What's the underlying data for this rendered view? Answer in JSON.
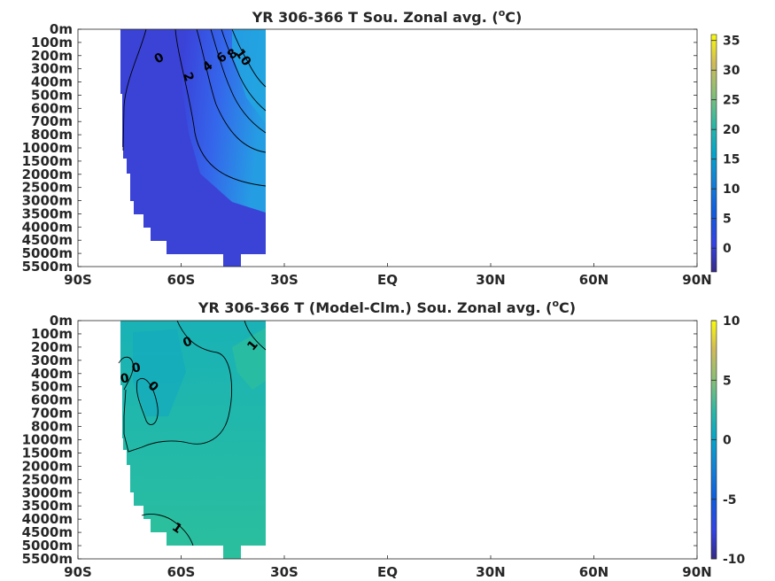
{
  "chart_data": [
    {
      "type": "heatmap",
      "title_main": "YR 306-366 T Sou. Zonal avg. (",
      "title_sup": "o",
      "title_end": "C)",
      "x_ticks": [
        "90S",
        "60S",
        "30S",
        "EQ",
        "30N",
        "60N",
        "90N"
      ],
      "y_ticks": [
        "0m",
        "100m",
        "200m",
        "300m",
        "400m",
        "500m",
        "600m",
        "700m",
        "800m",
        "1000m",
        "1500m",
        "2000m",
        "2500m",
        "3000m",
        "3500m",
        "4000m",
        "4500m",
        "5000m",
        "5500m"
      ],
      "colorbar_ticks": [
        35,
        30,
        25,
        20,
        15,
        10,
        5,
        0
      ],
      "clim": [
        -4,
        36
      ],
      "contour_labels": [
        "0",
        "2",
        "4",
        "6",
        "8",
        "10"
      ],
      "colormap": "parula",
      "data_extent_lat": [
        -78,
        -35
      ]
    },
    {
      "type": "heatmap",
      "title_main": "YR 306-366 T (Model-Clm.) Sou. Zonal avg. (",
      "title_sup": "o",
      "title_end": "C)",
      "x_ticks": [
        "90S",
        "60S",
        "30S",
        "EQ",
        "30N",
        "60N",
        "90N"
      ],
      "y_ticks": [
        "0m",
        "100m",
        "200m",
        "300m",
        "400m",
        "500m",
        "600m",
        "700m",
        "800m",
        "1000m",
        "1500m",
        "2000m",
        "2500m",
        "3000m",
        "3500m",
        "4000m",
        "4500m",
        "5000m",
        "5500m"
      ],
      "colorbar_ticks": [
        10,
        5,
        0,
        -5,
        -10
      ],
      "clim": [
        -10,
        10
      ],
      "contour_labels": [
        "0",
        "1",
        "0",
        "0",
        "0",
        "1"
      ],
      "colormap": "parula",
      "data_extent_lat": [
        -78,
        -35
      ]
    }
  ]
}
